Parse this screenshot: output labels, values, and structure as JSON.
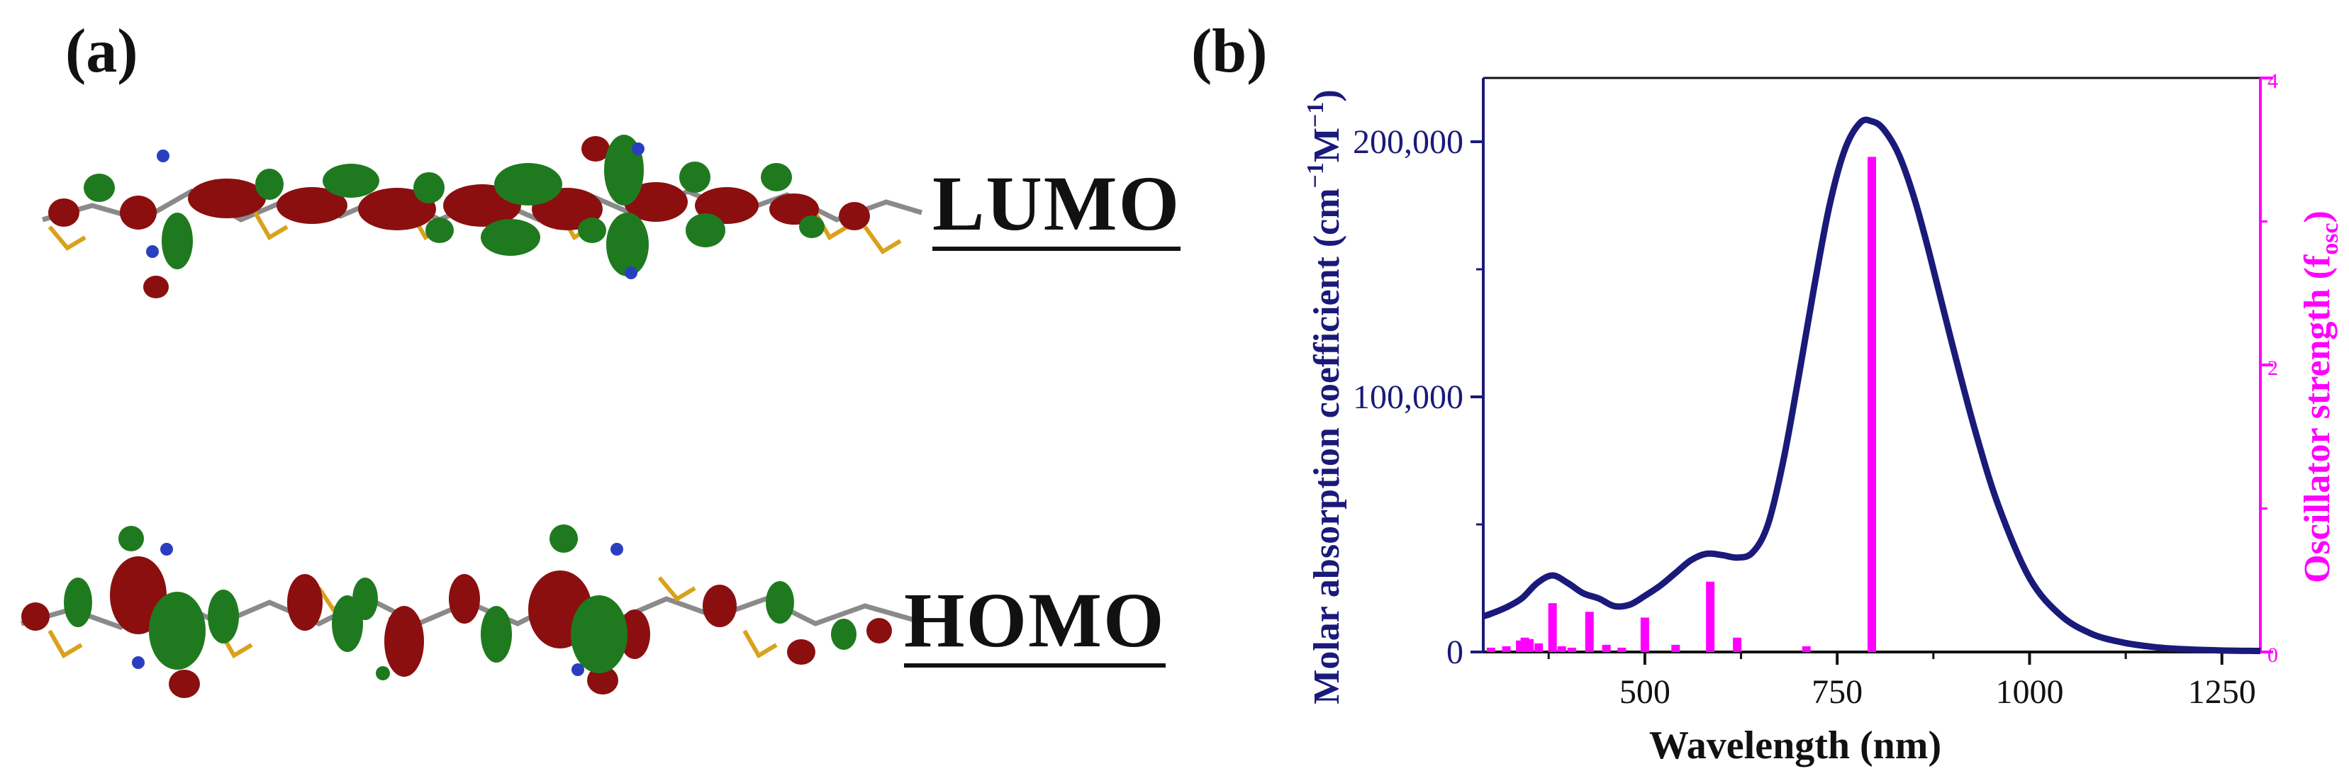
{
  "panel_a": {
    "label": "(a)",
    "orbitals": [
      {
        "label": "LUMO"
      },
      {
        "label": "HOMO"
      }
    ],
    "colors": {
      "lobe_positive": "#8b0f0f",
      "lobe_negative": "#1f7a1f",
      "backbone": "#8a8a8a",
      "sulfur": "#d9a21b",
      "nitrogen": "#2a3fbf"
    }
  },
  "panel_b": {
    "label": "(b)"
  },
  "chart_data": {
    "type": "line",
    "xlabel": "Wavelength (nm)",
    "ylabel_left": {
      "main": "Molar absorption coefficient (cm",
      "sup1": "−1",
      "mid": "M",
      "sup2": "−1",
      "end": ")"
    },
    "ylabel_right": {
      "main": "Oscillator strength (f",
      "sub": "osc",
      "end": ")"
    },
    "xlim": [
      290,
      1300
    ],
    "ylim_left": [
      0,
      225000
    ],
    "ylim_right": [
      0,
      4
    ],
    "x_ticks": [
      500,
      750,
      1000,
      1250
    ],
    "y_left_ticks": [
      {
        "value": 0,
        "label": "0"
      },
      {
        "value": 100000,
        "label": "100,000"
      },
      {
        "value": 200000,
        "label": "200,000"
      }
    ],
    "y_right_ticks": [
      {
        "value": 0,
        "label": "0"
      },
      {
        "value": 2,
        "label": "2"
      },
      {
        "value": 4,
        "label": "4"
      }
    ],
    "colors": {
      "absorption": "#1a1a7a",
      "oscillator": "#ff00ff"
    },
    "absorption_spectrum": {
      "x": [
        290,
        300,
        320,
        340,
        360,
        380,
        400,
        420,
        440,
        460,
        480,
        500,
        520,
        540,
        560,
        580,
        600,
        620,
        640,
        660,
        680,
        700,
        720,
        740,
        760,
        780,
        795,
        810,
        830,
        850,
        870,
        900,
        930,
        960,
        1000,
        1040,
        1080,
        1120,
        1160,
        1200,
        1250,
        1300
      ],
      "y": [
        14000,
        15000,
        17500,
        21000,
        27000,
        30000,
        27000,
        23000,
        21000,
        18000,
        18500,
        22000,
        26000,
        31000,
        36000,
        38500,
        38000,
        37000,
        39000,
        50000,
        75000,
        108000,
        143000,
        175000,
        197000,
        207500,
        208000,
        205000,
        195000,
        178000,
        156000,
        120000,
        86000,
        57000,
        29000,
        14500,
        7200,
        3800,
        2000,
        1100,
        600,
        400
      ]
    },
    "oscillator_strengths": {
      "x": [
        300,
        320,
        338,
        344,
        350,
        362,
        380,
        392,
        405,
        428,
        450,
        470,
        500,
        540,
        585,
        620,
        710,
        795
      ],
      "y": [
        0.03,
        0.04,
        0.08,
        0.1,
        0.09,
        0.06,
        0.34,
        0.04,
        0.03,
        0.28,
        0.05,
        0.03,
        0.24,
        0.05,
        0.49,
        0.1,
        0.04,
        3.45
      ]
    }
  }
}
